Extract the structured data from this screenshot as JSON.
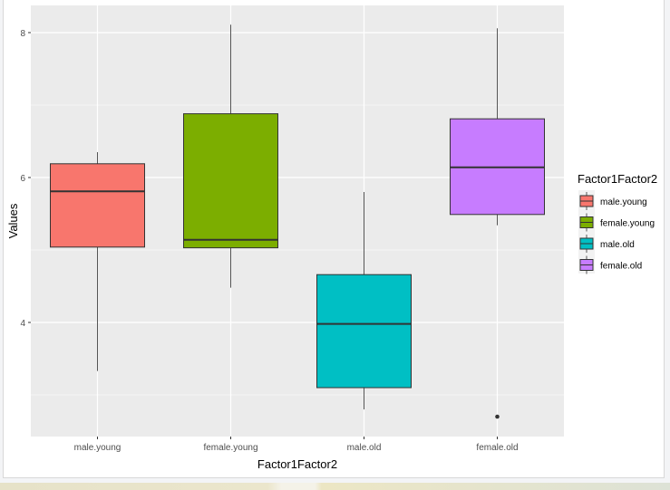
{
  "chart_data": {
    "type": "box",
    "title": "",
    "xlabel": "Factor1Factor2",
    "ylabel": "Values",
    "ylim": [
      2.45,
      8.4
    ],
    "yticks": [
      4,
      6,
      8
    ],
    "grid": true,
    "legend": {
      "title": "Factor1Factor2",
      "placement": "right"
    },
    "categories": [
      "male.young",
      "female.young",
      "male.old",
      "female.old"
    ],
    "colors": [
      "#F8766D",
      "#7CAE00",
      "#00BFC4",
      "#C77CFF"
    ],
    "boxes": [
      {
        "name": "male.young",
        "whisker_low": 3.33,
        "q1": 5.04,
        "median": 5.81,
        "q3": 6.19,
        "whisker_high": 6.35,
        "outliers": []
      },
      {
        "name": "female.young",
        "whisker_low": 4.48,
        "q1": 5.03,
        "median": 5.14,
        "q3": 6.88,
        "whisker_high": 8.11,
        "outliers": []
      },
      {
        "name": "male.old",
        "whisker_low": 2.8,
        "q1": 3.1,
        "median": 3.98,
        "q3": 4.66,
        "whisker_high": 5.8,
        "outliers": []
      },
      {
        "name": "female.old",
        "whisker_low": 5.34,
        "q1": 5.49,
        "median": 6.14,
        "q3": 6.81,
        "whisker_high": 8.06,
        "outliers": [
          2.7
        ]
      }
    ]
  }
}
